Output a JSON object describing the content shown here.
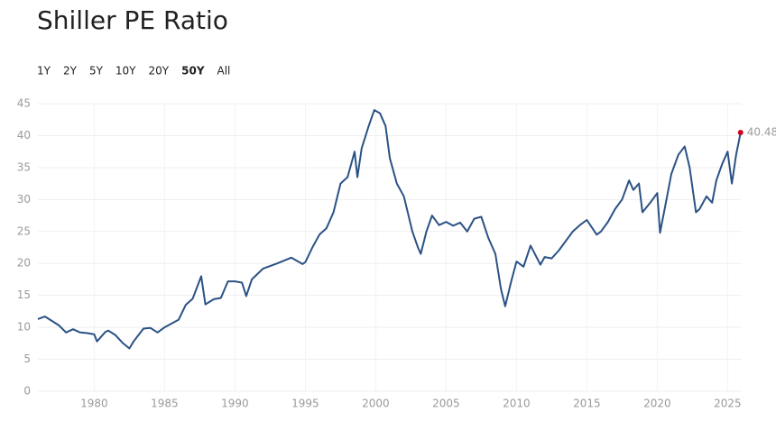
{
  "chart_data": {
    "type": "line",
    "title": "Shiller PE Ratio",
    "range_options": [
      "1Y",
      "2Y",
      "5Y",
      "10Y",
      "20Y",
      "50Y",
      "All"
    ],
    "selected_range": "50Y",
    "x": [
      1976.0,
      1976.5,
      1977.0,
      1977.5,
      1978.0,
      1978.5,
      1979.0,
      1979.5,
      1980.0,
      1980.2,
      1980.8,
      1981.0,
      1981.5,
      1982.0,
      1982.5,
      1982.8,
      1983.5,
      1984.0,
      1984.5,
      1985.0,
      1985.5,
      1986.0,
      1986.5,
      1987.0,
      1987.6,
      1987.9,
      1988.5,
      1989.0,
      1989.5,
      1990.0,
      1990.5,
      1990.8,
      1991.2,
      1992.0,
      1993.0,
      1994.0,
      1994.8,
      1995.0,
      1995.5,
      1996.0,
      1996.5,
      1997.0,
      1997.5,
      1998.0,
      1998.5,
      1998.7,
      1999.0,
      1999.5,
      1999.9,
      2000.3,
      2000.7,
      2001.0,
      2001.5,
      2002.0,
      2002.6,
      2003.0,
      2003.2,
      2003.6,
      2004.0,
      2004.5,
      2005.0,
      2005.5,
      2006.0,
      2006.5,
      2007.0,
      2007.5,
      2008.0,
      2008.5,
      2008.9,
      2009.2,
      2009.6,
      2010.0,
      2010.5,
      2011.0,
      2011.7,
      2012.0,
      2012.5,
      2013.0,
      2013.5,
      2014.0,
      2014.5,
      2015.0,
      2015.7,
      2016.0,
      2016.5,
      2017.0,
      2017.5,
      2018.0,
      2018.3,
      2018.7,
      2018.95,
      2019.5,
      2020.0,
      2020.2,
      2020.7,
      2021.0,
      2021.5,
      2021.95,
      2022.3,
      2022.75,
      2023.0,
      2023.5,
      2023.9,
      2024.2,
      2024.6,
      2025.0,
      2025.3,
      2025.6,
      2025.92
    ],
    "series": [
      {
        "name": "Shiller PE Ratio",
        "color": "#2b5285",
        "values": [
          11.3,
          11.7,
          11.0,
          10.3,
          9.2,
          9.7,
          9.2,
          9.1,
          8.9,
          7.8,
          9.3,
          9.5,
          8.8,
          7.6,
          6.7,
          7.8,
          9.8,
          9.9,
          9.2,
          10.0,
          10.6,
          11.2,
          13.5,
          14.5,
          18.0,
          13.6,
          14.4,
          14.6,
          17.2,
          17.2,
          17.0,
          14.9,
          17.5,
          19.2,
          20.0,
          20.9,
          19.9,
          20.2,
          22.5,
          24.5,
          25.5,
          28.0,
          32.5,
          33.5,
          37.5,
          33.5,
          38.0,
          41.5,
          44.0,
          43.5,
          41.5,
          36.5,
          32.5,
          30.5,
          25.0,
          22.5,
          21.5,
          25.0,
          27.5,
          26.0,
          26.5,
          25.9,
          26.4,
          25.0,
          27.0,
          27.3,
          24.0,
          21.5,
          16.0,
          13.3,
          17.0,
          20.3,
          19.5,
          22.8,
          19.8,
          21.0,
          20.8,
          22.0,
          23.5,
          25.0,
          26.0,
          26.8,
          24.5,
          25.0,
          26.5,
          28.5,
          30.0,
          33.0,
          31.5,
          32.5,
          28.0,
          29.5,
          31.0,
          24.8,
          30.5,
          34.0,
          37.0,
          38.3,
          35.0,
          28.0,
          28.5,
          30.5,
          29.5,
          33.0,
          35.5,
          37.5,
          32.5,
          37.0,
          40.48
        ]
      }
    ],
    "last_point_color": "#d0021b",
    "xlim": [
      1976,
      2026
    ],
    "xticks": [
      1980,
      1985,
      1990,
      1995,
      2000,
      2005,
      2010,
      2015,
      2020,
      2025
    ],
    "ylim": [
      0,
      45
    ],
    "yticks": [
      0,
      5,
      10,
      15,
      20,
      25,
      30,
      35,
      40,
      45
    ],
    "grid": true
  }
}
